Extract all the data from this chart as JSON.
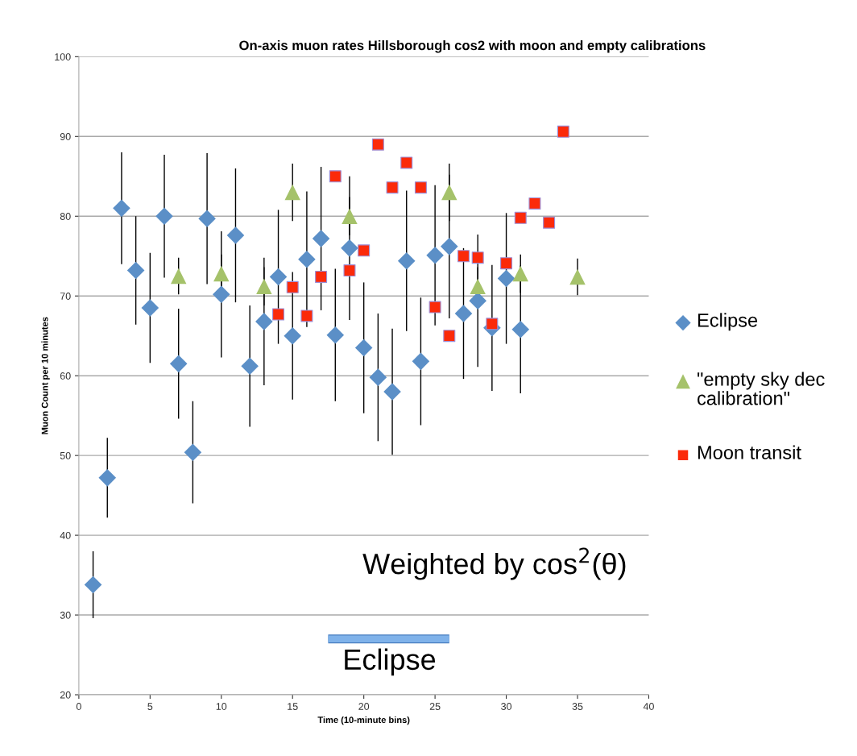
{
  "chart_data": {
    "type": "scatter",
    "title": "On-axis muon rates Hillsborough cos2 with moon and empty calibrations",
    "xlabel": "Time (10-minute bins)",
    "ylabel": "Muon Count per 10 minutes",
    "xlim": [
      0,
      40
    ],
    "xticks": [
      0,
      5,
      10,
      15,
      20,
      25,
      30,
      35,
      40
    ],
    "ylim": [
      20,
      100
    ],
    "yticks": [
      20,
      30,
      40,
      50,
      60,
      70,
      80,
      90,
      100
    ],
    "grid": "y",
    "legend": "right",
    "series": [
      {
        "name": "Eclipse",
        "color": "#5b8fc7",
        "marker": "diamond",
        "x": [
          1,
          2,
          3,
          4,
          5,
          6,
          7,
          8,
          9,
          10,
          11,
          12,
          13,
          14,
          15,
          16,
          17,
          18,
          19,
          20,
          21,
          22,
          23,
          24,
          25,
          26,
          27,
          28,
          29,
          30,
          31
        ],
        "values": [
          33.8,
          47.2,
          81.0,
          73.2,
          68.5,
          80.0,
          61.5,
          50.4,
          79.7,
          70.2,
          77.6,
          61.2,
          66.8,
          72.4,
          65.0,
          74.6,
          77.2,
          65.1,
          76.0,
          63.5,
          59.8,
          58.0,
          74.4,
          61.8,
          75.1,
          76.2,
          67.8,
          69.4,
          66.0,
          72.2,
          65.8
        ],
        "errors": [
          4.2,
          5,
          7,
          6.8,
          6.9,
          7.7,
          6.9,
          6.4,
          8.2,
          7.9,
          8.4,
          7.6,
          8,
          8.4,
          8,
          8.5,
          9,
          8.3,
          9,
          8.2,
          8,
          7.9,
          8.8,
          8,
          8.8,
          9,
          8.2,
          8.3,
          7.9,
          8.2,
          8
        ]
      },
      {
        "name": "\"empty sky dec calibration\"",
        "color": "#a5c26a",
        "marker": "triangle",
        "x": [
          7,
          10,
          13,
          15,
          19,
          26,
          28,
          31,
          35
        ],
        "values": [
          72.5,
          72.8,
          71.2,
          83.0,
          80.0,
          83.0,
          71.2,
          72.8,
          72.4
        ],
        "errors": [
          2.3,
          2.4,
          2.4,
          3.6,
          2.4,
          3.6,
          2.4,
          2.4,
          2.3
        ]
      },
      {
        "type": "line",
        "color": "#7fb2ea",
        "marker": "none",
        "x": [
          17.5,
          26
        ],
        "values": [
          27,
          27
        ]
      },
      {
        "name": "Moon transit",
        "color": "#fb2a0a",
        "marker": "square",
        "x": [
          14,
          15,
          16,
          17,
          18,
          19,
          20,
          21,
          22,
          23,
          24,
          25,
          26,
          27,
          28,
          29,
          30,
          31,
          32,
          33,
          34
        ],
        "values": [
          67.7,
          71.1,
          67.5,
          72.4,
          85.0,
          73.2,
          75.7,
          89.0,
          83.6,
          86.7,
          83.6,
          68.6,
          65.0,
          75.0,
          74.8,
          66.5,
          74.1,
          79.8,
          81.6,
          79.2,
          90.6
        ]
      }
    ],
    "annotations": [
      "Weighted by cos$^{2}$(θ)",
      "Eclipse"
    ]
  }
}
